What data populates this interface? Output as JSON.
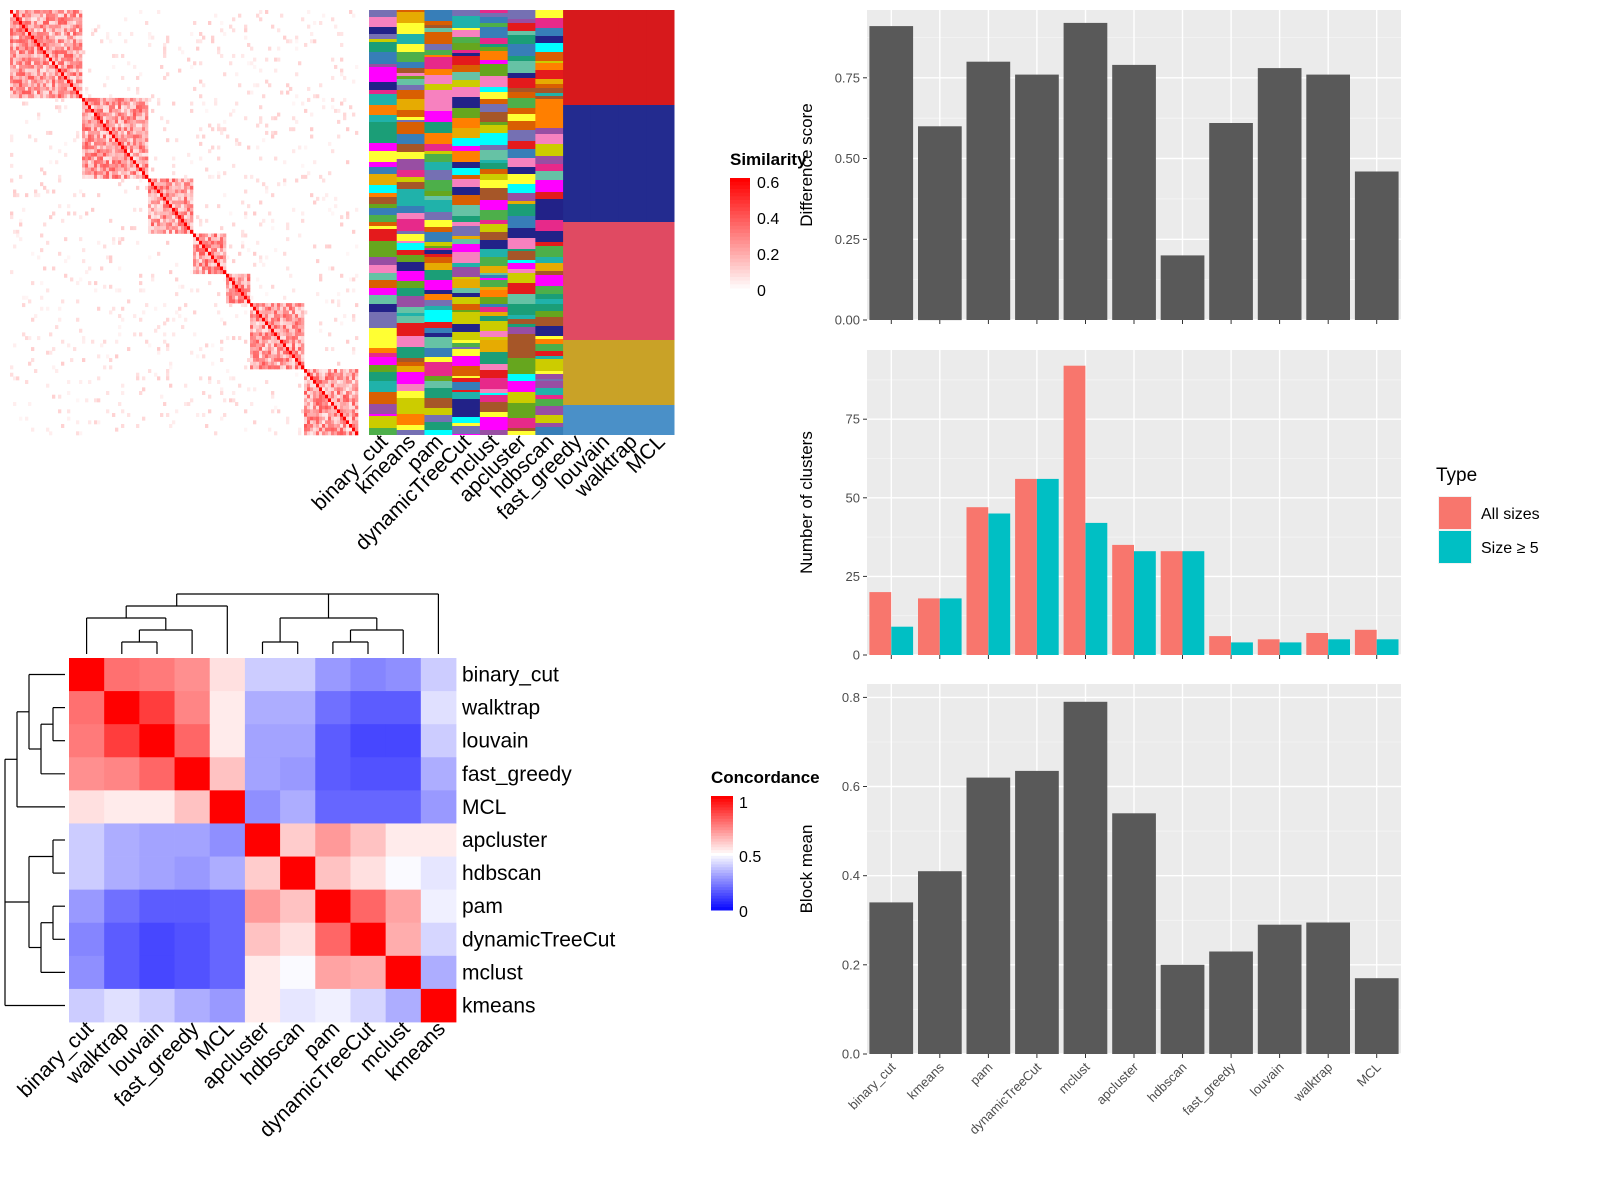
{
  "chart_data": [
    {
      "type": "heatmap",
      "id": "similarity-heatmap",
      "legend_title": "Similarity",
      "legend_ticks": [
        "0.6",
        "0.4",
        "0.2",
        "0"
      ],
      "colors": [
        "#ffffff",
        "#ff0000"
      ],
      "value_range": [
        0,
        0.6
      ]
    },
    {
      "type": "heatmap",
      "id": "cluster-assignment-heatmap",
      "columns": [
        "binary_cut",
        "kmeans",
        "pam",
        "dynamicTreeCut",
        "mclust",
        "apcluster",
        "hdbscan",
        "fast_greedy",
        "louvain",
        "walktrap",
        "MCL"
      ]
    },
    {
      "type": "heatmap",
      "id": "concordance-heatmap",
      "legend_title": "Concordance",
      "legend_ticks": [
        "1",
        "0.5",
        "0"
      ],
      "colors": [
        "#0000ff",
        "#ffffff",
        "#ff0000"
      ],
      "labels": [
        "binary_cut",
        "walktrap",
        "louvain",
        "fast_greedy",
        "MCL",
        "apcluster",
        "hdbscan",
        "pam",
        "dynamicTreeCut",
        "mclust",
        "kmeans"
      ],
      "values": [
        [
          1.0,
          0.78,
          0.76,
          0.72,
          0.56,
          0.4,
          0.4,
          0.3,
          0.26,
          0.28,
          0.4
        ],
        [
          0.78,
          1.0,
          0.88,
          0.74,
          0.54,
          0.34,
          0.34,
          0.22,
          0.18,
          0.18,
          0.44
        ],
        [
          0.76,
          0.88,
          1.0,
          0.8,
          0.54,
          0.32,
          0.32,
          0.18,
          0.14,
          0.14,
          0.4
        ],
        [
          0.72,
          0.74,
          0.8,
          1.0,
          0.62,
          0.32,
          0.3,
          0.18,
          0.16,
          0.16,
          0.34
        ],
        [
          0.56,
          0.54,
          0.54,
          0.62,
          1.0,
          0.28,
          0.34,
          0.2,
          0.2,
          0.2,
          0.3
        ],
        [
          0.4,
          0.34,
          0.32,
          0.32,
          0.28,
          1.0,
          0.6,
          0.7,
          0.62,
          0.54,
          0.54
        ],
        [
          0.4,
          0.34,
          0.32,
          0.3,
          0.34,
          0.6,
          1.0,
          0.62,
          0.56,
          0.49,
          0.45
        ],
        [
          0.3,
          0.22,
          0.18,
          0.18,
          0.2,
          0.7,
          0.62,
          1.0,
          0.8,
          0.68,
          0.47
        ],
        [
          0.26,
          0.18,
          0.14,
          0.16,
          0.2,
          0.62,
          0.56,
          0.8,
          1.0,
          0.66,
          0.42
        ],
        [
          0.28,
          0.18,
          0.14,
          0.16,
          0.2,
          0.54,
          0.49,
          0.68,
          0.66,
          1.0,
          0.34
        ],
        [
          0.4,
          0.44,
          0.4,
          0.34,
          0.3,
          0.54,
          0.45,
          0.47,
          0.42,
          0.34,
          1.0
        ]
      ]
    },
    {
      "type": "bar",
      "id": "difference-score",
      "categories": [
        "binary_cut",
        "kmeans",
        "pam",
        "dynamicTreeCut",
        "mclust",
        "apcluster",
        "hdbscan",
        "fast_greedy",
        "louvain",
        "walktrap",
        "MCL"
      ],
      "values": [
        0.91,
        0.6,
        0.8,
        0.76,
        0.92,
        0.79,
        0.2,
        0.61,
        0.78,
        0.76,
        0.46
      ],
      "ylabel": "Difference score",
      "ylim": [
        0,
        0.96
      ],
      "yticks": [
        0.0,
        0.25,
        0.5,
        0.75
      ],
      "ytick_labels": [
        "0.00",
        "0.25",
        "0.50",
        "0.75"
      ],
      "color": "#595959"
    },
    {
      "type": "bar",
      "id": "number-of-clusters",
      "categories": [
        "binary_cut",
        "kmeans",
        "pam",
        "dynamicTreeCut",
        "mclust",
        "apcluster",
        "hdbscan",
        "fast_greedy",
        "louvain",
        "walktrap",
        "MCL"
      ],
      "series": [
        {
          "name": "All sizes",
          "values": [
            20,
            18,
            47,
            56,
            92,
            35,
            33,
            6,
            5,
            7,
            8
          ],
          "color": "#f8766d"
        },
        {
          "name": "Size ≥ 5",
          "values": [
            9,
            18,
            45,
            56,
            42,
            33,
            33,
            4,
            4,
            5,
            5
          ],
          "color": "#00bfc4"
        }
      ],
      "ylabel": "Number of clusters",
      "ylim": [
        0,
        97
      ],
      "yticks": [
        0,
        25,
        50,
        75
      ],
      "ytick_labels": [
        "0",
        "25",
        "50",
        "75"
      ],
      "legend_title": "Type",
      "legend_position": "right"
    },
    {
      "type": "bar",
      "id": "block-mean",
      "categories": [
        "binary_cut",
        "kmeans",
        "pam",
        "dynamicTreeCut",
        "mclust",
        "apcluster",
        "hdbscan",
        "fast_greedy",
        "louvain",
        "walktrap",
        "MCL"
      ],
      "values": [
        0.34,
        0.41,
        0.62,
        0.635,
        0.79,
        0.54,
        0.2,
        0.23,
        0.29,
        0.295,
        0.17
      ],
      "ylabel": "Block mean",
      "ylim": [
        0,
        0.83
      ],
      "yticks": [
        0.0,
        0.2,
        0.4,
        0.6,
        0.8
      ],
      "ytick_labels": [
        "0.0",
        "0.2",
        "0.4",
        "0.6",
        "0.8"
      ],
      "color": "#595959"
    }
  ]
}
